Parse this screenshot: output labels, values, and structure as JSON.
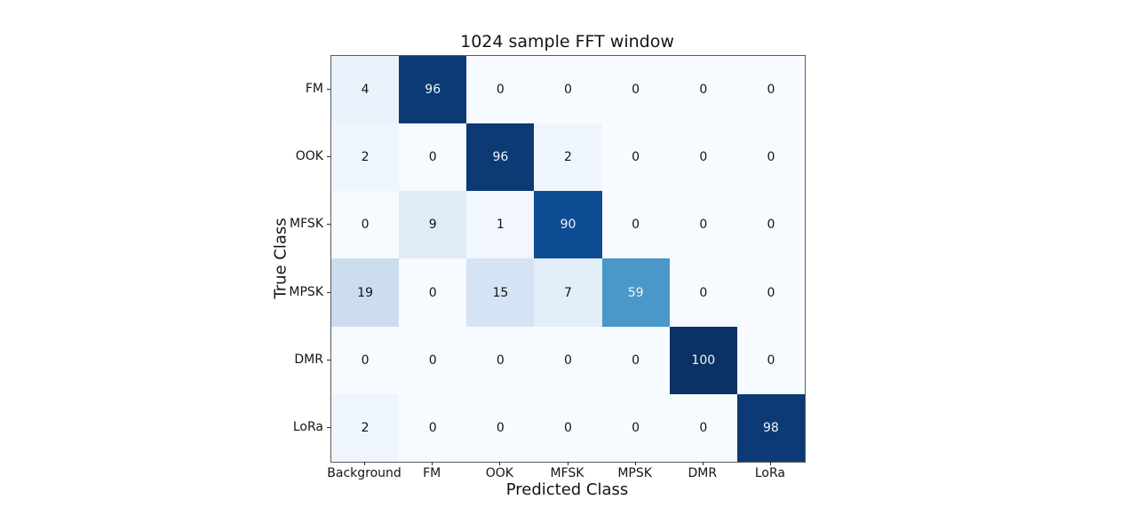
{
  "figure": {
    "title": "1024 sample FFT window",
    "xlabel": "Predicted Class",
    "ylabel": "True Class"
  },
  "chart_data": {
    "type": "heatmap",
    "title": "1024 sample FFT window",
    "xlabel": "Predicted Class",
    "ylabel": "True Class",
    "x_categories": [
      "Background",
      "FM",
      "OOK",
      "MFSK",
      "MPSK",
      "DMR",
      "LoRa"
    ],
    "y_categories": [
      "FM",
      "OOK",
      "MFSK",
      "MPSK",
      "DMR",
      "LoRa"
    ],
    "values": [
      [
        4,
        96,
        0,
        0,
        0,
        0,
        0
      ],
      [
        2,
        0,
        96,
        2,
        0,
        0,
        0
      ],
      [
        0,
        9,
        1,
        90,
        0,
        0,
        0
      ],
      [
        19,
        0,
        15,
        7,
        59,
        0,
        0
      ],
      [
        0,
        0,
        0,
        0,
        0,
        100,
        0
      ],
      [
        2,
        0,
        0,
        0,
        0,
        0,
        98
      ]
    ],
    "colormap": "Blues",
    "value_range": [
      0,
      100
    ],
    "grid": false,
    "legend": "none",
    "annotations": "cell values shown in each cell"
  },
  "colors": {
    "background": "#ffffff",
    "plot_background": "#f7fbff",
    "spine": "#5a5a5a",
    "tick": "#2b2b2b",
    "text": "#141414",
    "cell_text_dark": "#141414",
    "cell_text_light": "#eff5fb",
    "light_text_threshold": 50,
    "value_colors": {
      "0": "#f7fbff",
      "1": "#f2f7fd",
      "2": "#eff5fc",
      "4": "#eaf2fb",
      "7": "#e2eef8",
      "9": "#dfebf7",
      "15": "#d4e4f4",
      "19": "#cdddf0",
      "59": "#4a98c9",
      "90": "#0e4c94",
      "96": "#0c3a74",
      "98": "#0c3a74",
      "100": "#0a3264"
    }
  }
}
